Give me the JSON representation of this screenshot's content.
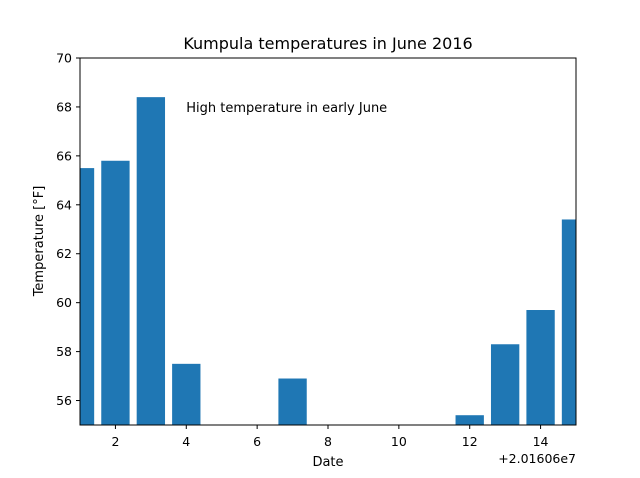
{
  "chart_data": {
    "type": "bar",
    "title": "Kumpula temperatures in June 2016",
    "xlabel": "Date",
    "ylabel": "Temperature [°F]",
    "x_offset_label": "+2.01606e7",
    "x": [
      1,
      2,
      3,
      4,
      5,
      6,
      7,
      8,
      9,
      10,
      11,
      12,
      13,
      14,
      15
    ],
    "values": [
      65.5,
      65.8,
      68.4,
      57.5,
      54.3,
      54.5,
      56.9,
      54.6,
      54.2,
      54.4,
      54.0,
      55.4,
      58.3,
      59.7,
      63.4
    ],
    "xlim": [
      1,
      15
    ],
    "ylim": [
      55,
      70
    ],
    "xticks": [
      2,
      4,
      6,
      8,
      10,
      12,
      14
    ],
    "yticks": [
      56,
      58,
      60,
      62,
      64,
      66,
      68,
      70
    ],
    "grid": false,
    "color": "#1f77b4",
    "annotation": {
      "text": "High temperature in early June",
      "x": 4,
      "y": 68
    }
  }
}
